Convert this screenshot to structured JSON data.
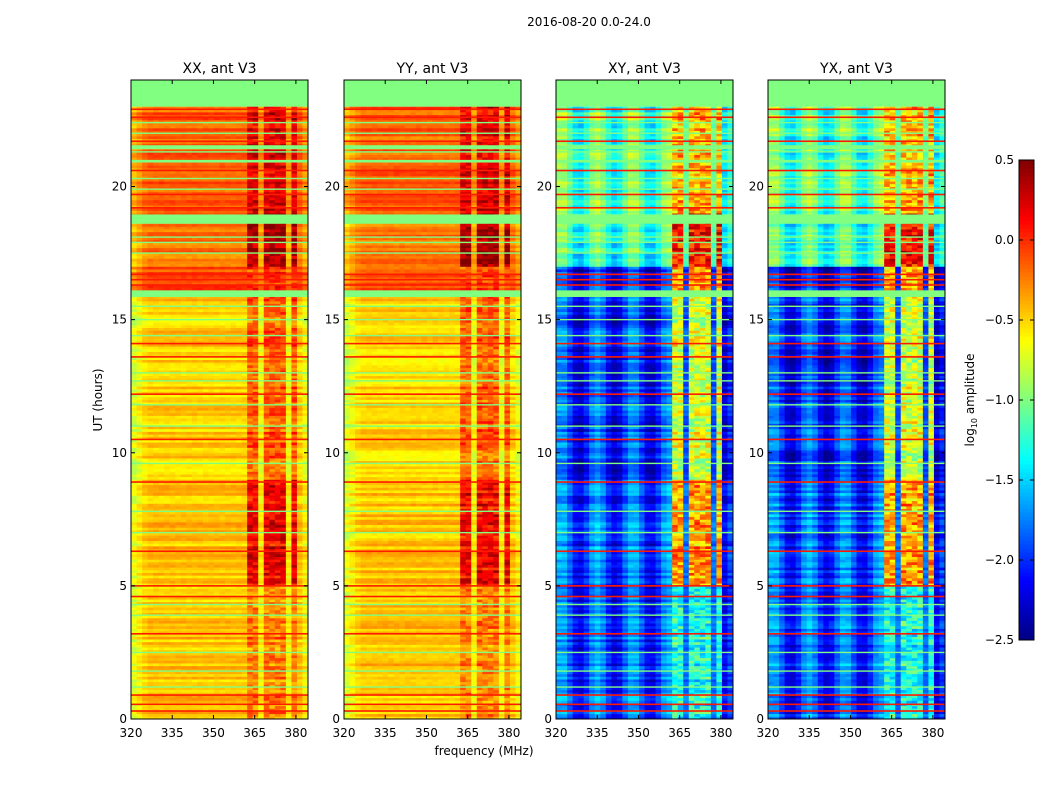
{
  "chart_data": {
    "type": "heatmap",
    "title": "2016-08-20 0.0-24.0",
    "xlabel": "frequency (MHz)",
    "ylabel": "UT (hours)",
    "xlim": [
      320,
      384.4
    ],
    "ylim": [
      0,
      24
    ],
    "xticks": [
      320,
      335,
      350,
      365,
      380
    ],
    "yticks": [
      0,
      5,
      10,
      15,
      20
    ],
    "colormap": "jet",
    "colorbar": {
      "label_main": "log",
      "label_sub": "10",
      "label_rest": " amplitude",
      "min": -2.5,
      "max": 0.5,
      "ticks": [
        0.5,
        0.0,
        -0.5,
        -1.0,
        -1.5,
        -2.0,
        -2.5
      ],
      "tick_labels": [
        "0.5",
        "0.0",
        "−0.5",
        "−1.0",
        "−1.5",
        "−2.0",
        "−2.5"
      ]
    },
    "panels": [
      {
        "title": "XX, ant V3",
        "kind": "parallel"
      },
      {
        "title": "YY, ant V3",
        "kind": "parallel"
      },
      {
        "title": "XY, ant V3",
        "kind": "cross"
      },
      {
        "title": "YX, ant V3",
        "kind": "cross"
      }
    ],
    "rfi_subbands_mhz": [
      [
        363,
        367
      ],
      [
        368,
        372
      ],
      [
        373,
        376.5
      ],
      [
        377.5,
        381
      ]
    ],
    "time_segments": [
      {
        "start": 0,
        "end": 5,
        "parallel": -0.45,
        "cross": -1.9,
        "rfi_parallel": -0.25,
        "rfi_cross": -1.3
      },
      {
        "start": 5,
        "end": 9,
        "parallel": -0.45,
        "cross": -1.9,
        "rfi_parallel": 0.15,
        "rfi_cross": -0.35
      },
      {
        "start": 9,
        "end": 16,
        "parallel": -0.5,
        "cross": -2.0,
        "rfi_parallel": -0.15,
        "rfi_cross": -0.75
      },
      {
        "start": 16,
        "end": 17,
        "parallel": -0.1,
        "cross": -2.1,
        "rfi_parallel": -0.05,
        "rfi_cross": -0.4
      },
      {
        "start": 17,
        "end": 19,
        "parallel": -0.2,
        "cross": -1.2,
        "rfi_parallel": 0.4,
        "rfi_cross": 0.1
      },
      {
        "start": 19,
        "end": 23,
        "parallel": -0.15,
        "cross": -1.15,
        "rfi_parallel": 0.2,
        "rfi_cross": -0.4
      }
    ],
    "flagged_value": -1.0,
    "flagged_hours": [
      [
        23,
        24
      ],
      [
        18.6,
        18.95
      ],
      [
        15.85,
        16.1
      ],
      [
        21.4,
        21.55
      ],
      [
        20.9,
        21.0
      ]
    ],
    "red_line_value": 0.05,
    "red_line_hours": [
      0.3,
      0.55,
      0.9,
      3.2,
      4.6,
      5.0,
      6.3,
      8.9,
      10.5,
      12.2,
      13.6,
      14.1,
      16.3,
      16.5,
      16.7,
      19.2,
      19.7,
      20.6,
      21.7,
      22.6,
      22.9
    ],
    "green_line_hours": [
      1.2,
      1.8,
      2.5,
      3.9,
      4.3,
      7.0,
      7.8,
      9.6,
      11.0,
      11.8,
      12.7,
      13.0,
      14.4,
      15.0,
      15.5,
      17.5,
      17.9,
      18.1,
      19.9,
      20.3,
      21.3,
      22.0,
      22.4
    ]
  }
}
